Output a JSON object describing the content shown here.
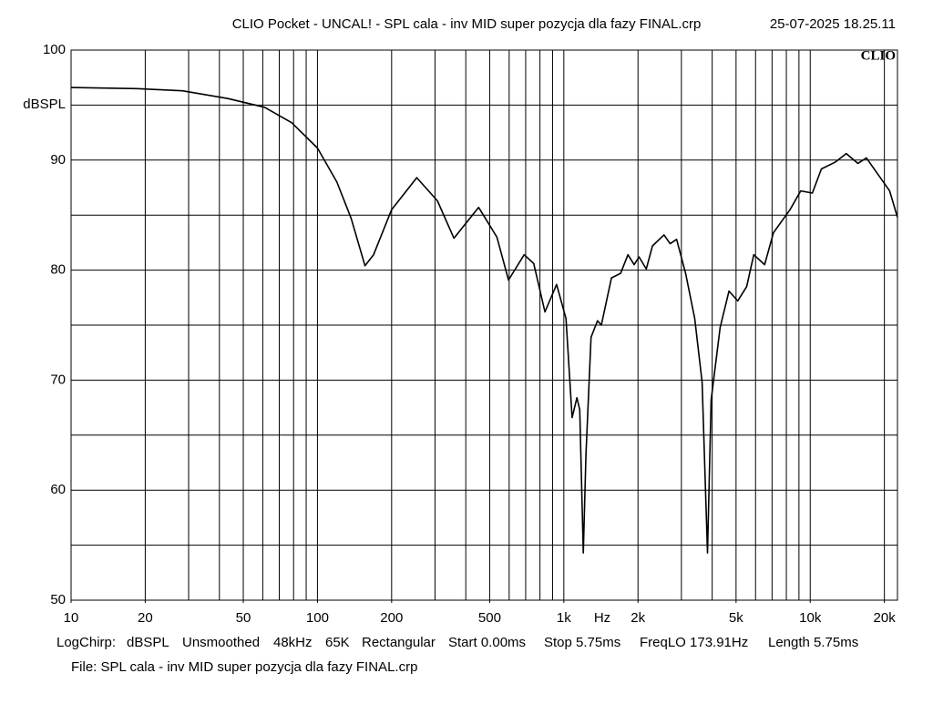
{
  "chart_data": {
    "type": "line",
    "title": "CLIO Pocket - UNCAL! - SPL cala - inv MID super pozycja dla fazy FINAL.crp",
    "date": "25-07-2025 18.25.11",
    "logo": "CLIO",
    "y_label": "dBSPL",
    "x_label": "Hz",
    "info": [
      "LogChirp:",
      "dBSPL",
      "Unsmoothed",
      "48kHz",
      "65K",
      "Rectangular",
      "Start 0.00ms",
      "Stop 5.75ms",
      "FreqLO 173.91Hz",
      "Length 5.75ms"
    ],
    "file": "File: SPL cala - inv MID super pozycja dla fazy FINAL.crp",
    "x_scale": "log",
    "grid": true,
    "color": "#000000",
    "xlim": [
      10,
      22600
    ],
    "ylim": [
      50,
      100
    ],
    "xticks": [
      10,
      20,
      50,
      100,
      200,
      500,
      {
        "value": 1000,
        "label": "1k"
      },
      {
        "value": 2000,
        "label": "2k"
      },
      {
        "value": 5000,
        "label": "5k"
      },
      {
        "value": 10000,
        "label": "10k"
      },
      {
        "value": 20000,
        "label": "20k"
      }
    ],
    "xgrid": [
      20,
      30,
      40,
      50,
      60,
      70,
      80,
      90,
      100,
      200,
      300,
      400,
      500,
      600,
      700,
      800,
      900,
      1000,
      2000,
      3000,
      4000,
      5000,
      6000,
      7000,
      8000,
      9000,
      10000,
      20000
    ],
    "yticks": [
      50,
      60,
      70,
      80,
      90,
      100
    ],
    "ygrid": [
      55,
      65,
      75,
      85,
      95
    ],
    "x": [
      10,
      18.5,
      28.3,
      43.3,
      61,
      78.6,
      100,
      120,
      137,
      156,
      169,
      200,
      253,
      307,
      358,
      451,
      535,
      596,
      690,
      755,
      838,
      935,
      1020,
      1080,
      1130,
      1160,
      1200,
      1230,
      1290,
      1370,
      1420,
      1560,
      1700,
      1820,
      1930,
      2020,
      2160,
      2290,
      2550,
      2700,
      2870,
      3120,
      3400,
      3640,
      3830,
      3960,
      4310,
      4680,
      5080,
      5520,
      5900,
      6530,
      7090,
      8280,
      9150,
      10200,
      11100,
      12600,
      14000,
      15600,
      16900,
      18700,
      21000,
      22600
    ],
    "values": [
      96.6,
      96.5,
      96.3,
      95.6,
      94.8,
      93.4,
      91.1,
      88.0,
      84.7,
      80.4,
      81.4,
      85.5,
      88.4,
      86.3,
      82.9,
      85.7,
      83.0,
      79.1,
      81.4,
      80.6,
      76.2,
      78.7,
      75.6,
      66.6,
      68.4,
      67.3,
      54.3,
      63.2,
      73.9,
      75.4,
      75.0,
      79.3,
      79.7,
      81.4,
      80.5,
      81.2,
      80.1,
      82.2,
      83.2,
      82.4,
      82.8,
      79.7,
      75.6,
      69.8,
      54.3,
      68.2,
      74.8,
      78.1,
      77.2,
      78.5,
      81.4,
      80.5,
      83.4,
      85.5,
      87.2,
      87.0,
      89.2,
      89.8,
      90.6,
      89.7,
      90.2,
      88.8,
      87.2,
      84.8
    ]
  }
}
